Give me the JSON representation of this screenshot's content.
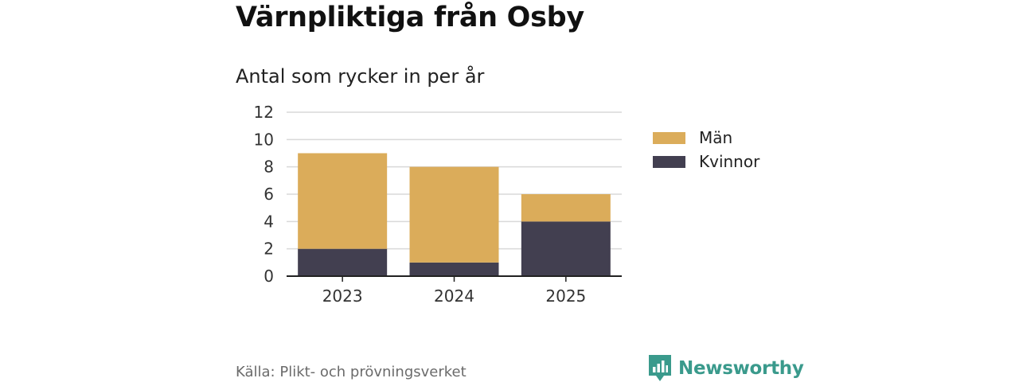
{
  "header": {
    "title": "Värnpliktiga från Osby",
    "subtitle": "Antal som rycker in per år"
  },
  "footer": {
    "source": "Källa: Plikt- och prövningsverket",
    "brand": "Newsworthy"
  },
  "colors": {
    "men": "#dbac5a",
    "women": "#423f50",
    "grid": "#d9d9d9",
    "axis": "#222222",
    "brand": "#3a9a8c"
  },
  "chart_data": {
    "type": "bar",
    "stacked": true,
    "title": "Värnpliktiga från Osby",
    "subtitle": "Antal som rycker in per år",
    "xlabel": "",
    "ylabel": "",
    "categories": [
      "2023",
      "2024",
      "2025"
    ],
    "series": [
      {
        "name": "Kvinnor",
        "values": [
          2,
          1,
          4
        ],
        "color": "#423f50"
      },
      {
        "name": "Män",
        "values": [
          7,
          7,
          2
        ],
        "color": "#dbac5a"
      }
    ],
    "ylim": [
      0,
      12
    ],
    "yticks": [
      0,
      2,
      4,
      6,
      8,
      10,
      12
    ],
    "grid": true,
    "legend_position": "right",
    "legend_order": [
      "Män",
      "Kvinnor"
    ]
  }
}
